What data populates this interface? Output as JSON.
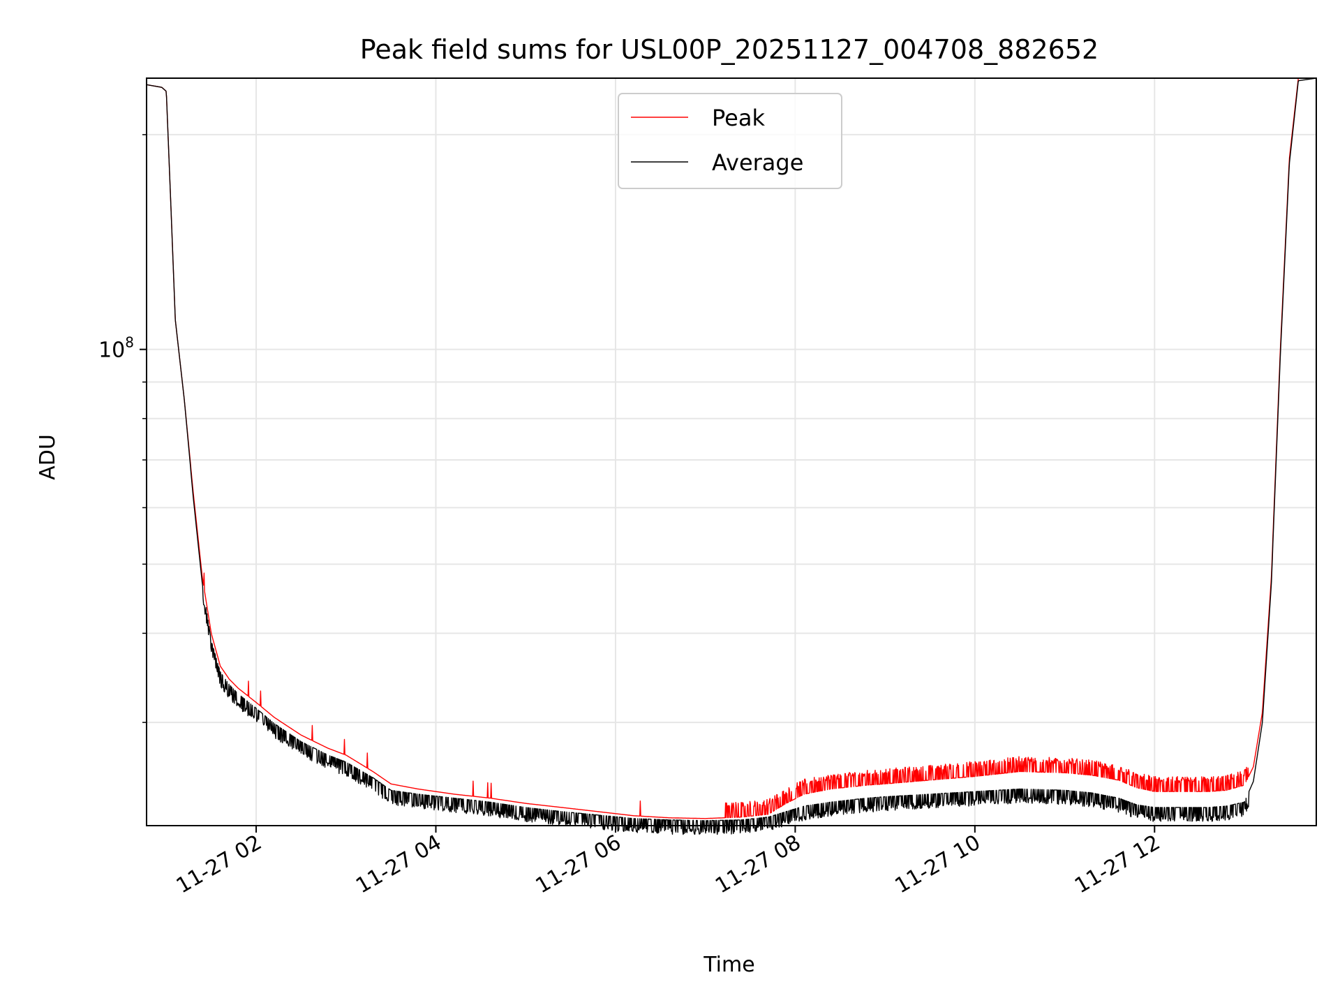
{
  "chart_data": {
    "type": "line",
    "title": "Peak field sums for USL00P_20251127_004708_882652",
    "xlabel": "Time",
    "ylabel": "ADU",
    "yscale": "log",
    "xlim_hours": [
      0.78,
      13.8
    ],
    "ylim": [
      21500000,
      240000000
    ],
    "x_ticks": [
      {
        "hour": 2,
        "label": "11-27 02"
      },
      {
        "hour": 4,
        "label": "11-27 04"
      },
      {
        "hour": 6,
        "label": "11-27 06"
      },
      {
        "hour": 8,
        "label": "11-27 08"
      },
      {
        "hour": 10,
        "label": "11-27 10"
      },
      {
        "hour": 12,
        "label": "11-27 12"
      }
    ],
    "y_major_tick": {
      "value": 100000000,
      "label_base": "10",
      "label_exp": "8"
    },
    "y_minor_ticks": [
      30000000,
      40000000,
      50000000,
      60000000,
      70000000,
      80000000,
      90000000,
      200000000
    ],
    "grid": true,
    "legend": {
      "position": "top-center",
      "entries": [
        "Peak",
        "Average"
      ]
    },
    "series": [
      {
        "name": "Peak",
        "color": "#ff0000",
        "x_hours": [
          0.78,
          0.95,
          1.0,
          1.05,
          1.1,
          1.2,
          1.3,
          1.4,
          1.5,
          1.6,
          1.7,
          1.8,
          2.0,
          2.2,
          2.5,
          2.8,
          3.0,
          3.3,
          3.5,
          3.8,
          4.2,
          4.6,
          5.0,
          5.4,
          5.8,
          6.2,
          6.6,
          7.0,
          7.4,
          7.7,
          7.9,
          8.1,
          8.4,
          8.8,
          9.0,
          9.5,
          10.0,
          10.5,
          11.0,
          11.3,
          11.6,
          11.8,
          12.0,
          12.3,
          12.6,
          12.8,
          13.0,
          13.1,
          13.2,
          13.3,
          13.4,
          13.5,
          13.6,
          13.8
        ],
        "values": [
          235000000,
          233000000,
          230000000,
          160000000,
          110000000,
          85000000,
          63000000,
          48000000,
          40000000,
          36000000,
          34500000,
          33500000,
          32000000,
          30500000,
          28800000,
          27600000,
          27000000,
          25600000,
          24600000,
          24200000,
          23800000,
          23500000,
          23100000,
          22800000,
          22500000,
          22200000,
          22050000,
          22000000,
          22100000,
          22300000,
          23100000,
          23800000,
          24200000,
          24500000,
          24600000,
          24900000,
          25200000,
          25600000,
          25500000,
          25300000,
          24900000,
          24300000,
          24000000,
          24000000,
          24000000,
          24100000,
          24500000,
          26000000,
          31000000,
          48000000,
          100000000,
          185000000,
          240000000,
          240000000
        ]
      },
      {
        "name": "Average",
        "color": "#000000",
        "x_hours": [
          0.78,
          0.95,
          1.0,
          1.05,
          1.1,
          1.2,
          1.3,
          1.4,
          1.5,
          1.6,
          1.7,
          1.8,
          2.0,
          2.2,
          2.5,
          2.8,
          3.0,
          3.3,
          3.5,
          3.8,
          4.2,
          4.6,
          5.0,
          5.4,
          5.8,
          6.2,
          6.6,
          7.0,
          7.4,
          7.7,
          7.9,
          8.1,
          8.4,
          8.8,
          9.0,
          9.5,
          10.0,
          10.5,
          11.0,
          11.3,
          11.6,
          11.8,
          12.0,
          12.3,
          12.6,
          12.8,
          13.0,
          13.1,
          13.2,
          13.3,
          13.4,
          13.5,
          13.6,
          13.8
        ],
        "values": [
          235000000,
          233000000,
          230000000,
          160000000,
          110000000,
          85000000,
          62000000,
          47000000,
          39000000,
          35300000,
          33900000,
          32900000,
          31400000,
          29900000,
          28200000,
          27000000,
          26400000,
          25100000,
          24100000,
          23800000,
          23500000,
          23200000,
          22800000,
          22500000,
          22250000,
          22000000,
          21900000,
          21850000,
          21900000,
          22100000,
          22500000,
          22900000,
          23200000,
          23500000,
          23600000,
          23800000,
          24000000,
          24200000,
          24100000,
          23900000,
          23500000,
          23000000,
          22800000,
          22800000,
          22800000,
          22900000,
          23200000,
          24800000,
          30000000,
          47000000,
          98000000,
          182000000,
          238000000,
          240000000
        ]
      }
    ]
  }
}
